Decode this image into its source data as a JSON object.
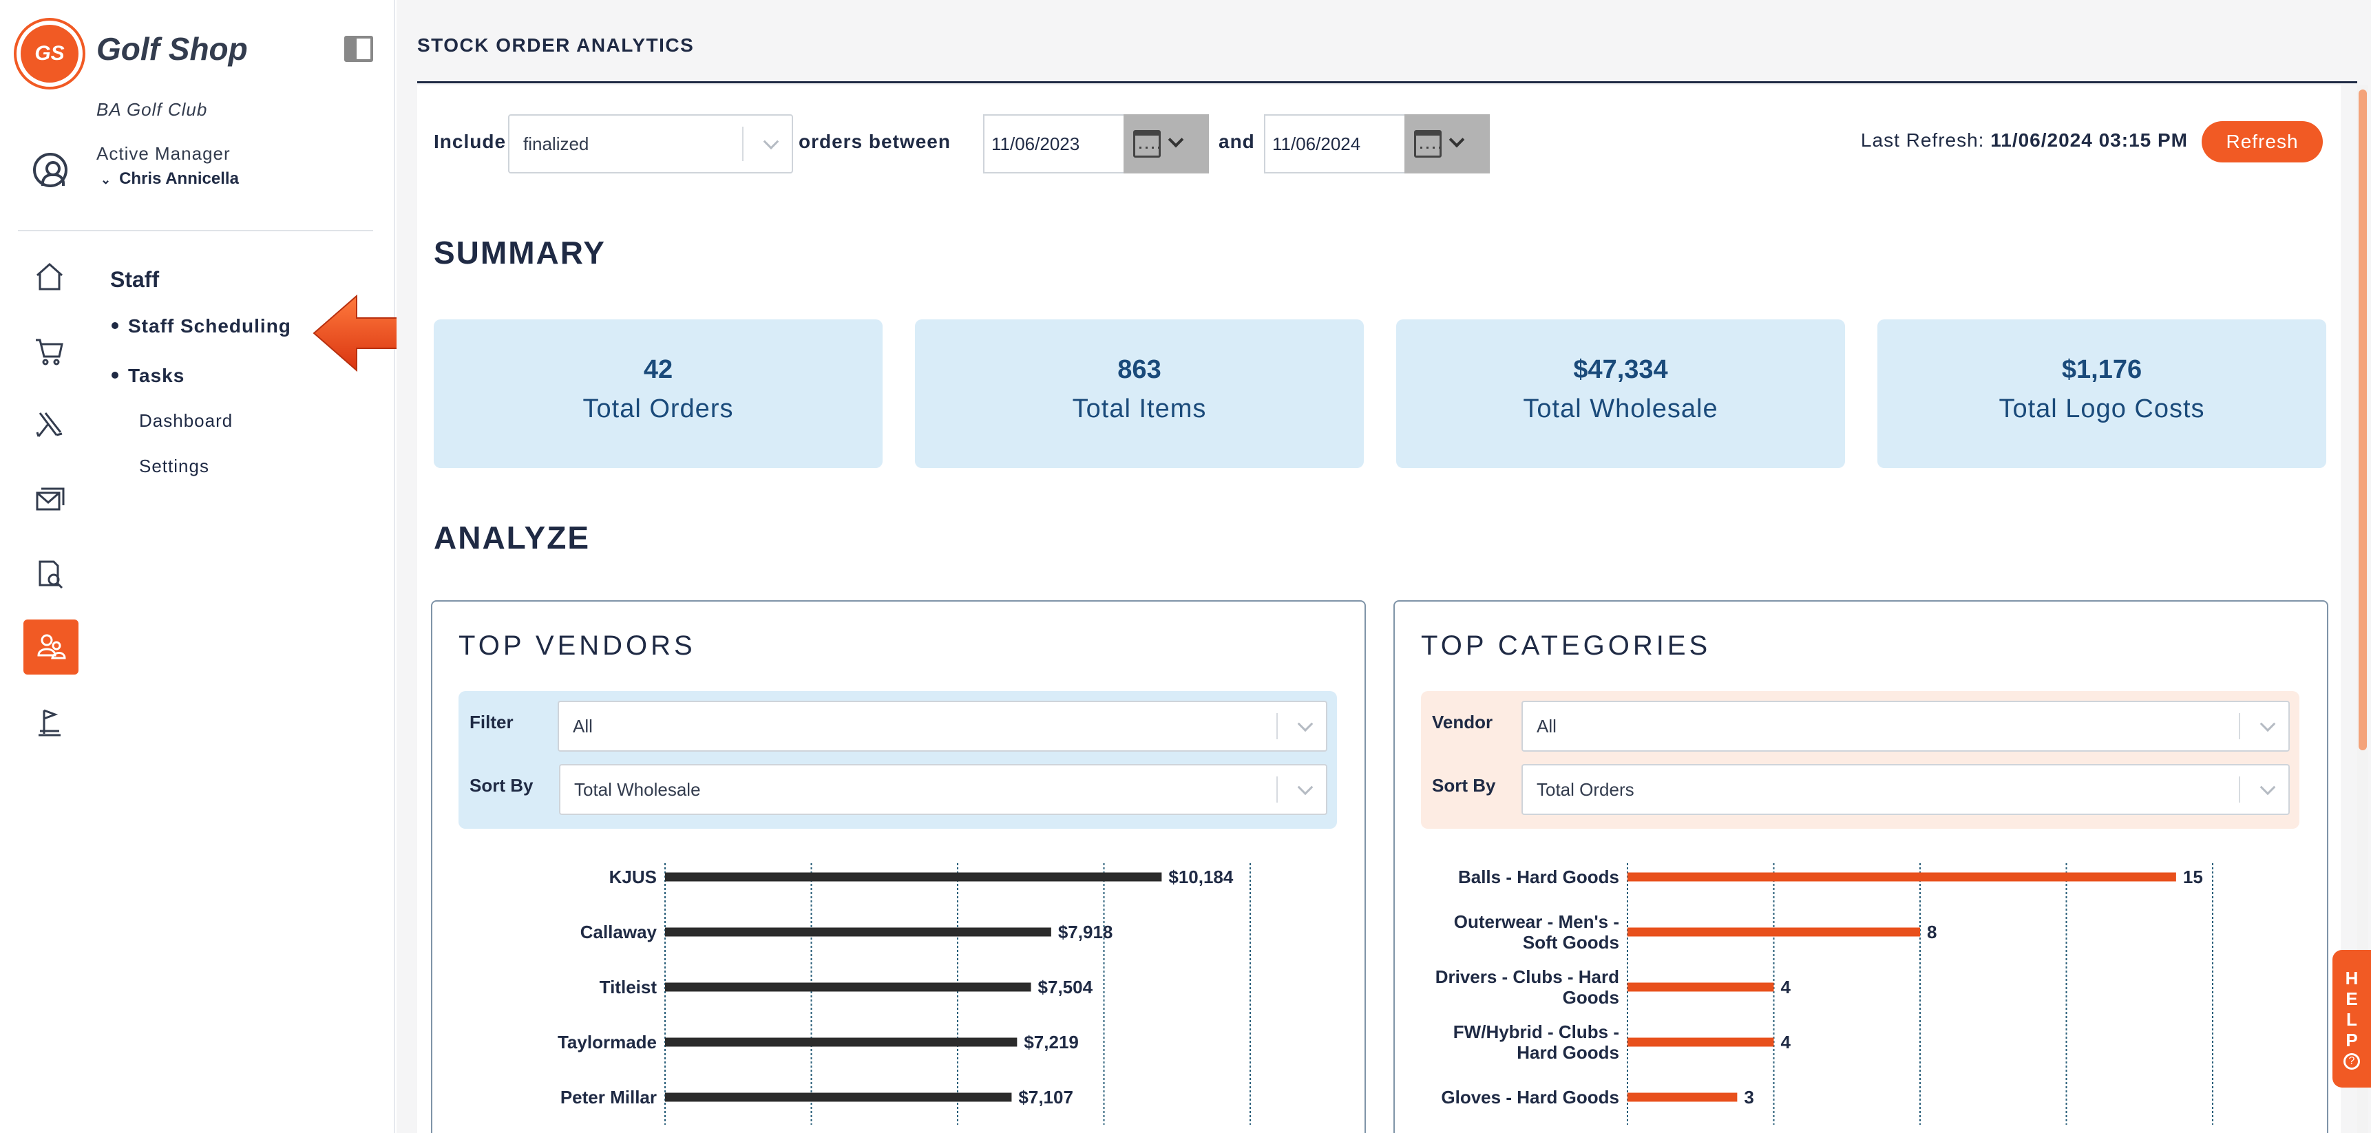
{
  "sidebar": {
    "logo_initials": "GS",
    "app_name": "Golf Shop",
    "club_name": "BA Golf Club",
    "manager_label": "Active Manager",
    "manager_name": "Chris Annicella",
    "section_title": "Staff",
    "menu": [
      {
        "label": "Staff Scheduling",
        "bullet": true
      },
      {
        "label": "Tasks",
        "bullet": true
      },
      {
        "label": "Dashboard",
        "bullet": false
      },
      {
        "label": "Settings",
        "bullet": false
      }
    ],
    "nav_icons": [
      "home-icon",
      "cart-icon",
      "golf-clubs-icon",
      "mail-icon",
      "document-search-icon",
      "staff-icon",
      "flag-icon"
    ],
    "active_icon": "staff-icon",
    "arrow_color": "#e8431a"
  },
  "header": {
    "title": "STOCK ORDER ANALYTICS"
  },
  "filters": {
    "include_label": "Include",
    "include_value": "finalized",
    "between_label": "orders between",
    "start_date": "11/06/2023",
    "and_label": "and",
    "end_date": "11/06/2024",
    "last_refresh_label": "Last Refresh:",
    "last_refresh_value": "11/06/2024 03:15 PM",
    "refresh_button": "Refresh"
  },
  "summary": {
    "title": "SUMMARY",
    "cards": [
      {
        "value": "42",
        "label": "Total Orders"
      },
      {
        "value": "863",
        "label": "Total Items"
      },
      {
        "value": "$47,334",
        "label": "Total Wholesale"
      },
      {
        "value": "$1,176",
        "label": "Total Logo Costs"
      }
    ]
  },
  "analyze": {
    "title": "ANALYZE",
    "vendors": {
      "title": "TOP VENDORS",
      "filter_label": "Filter",
      "filter_value": "All",
      "sort_label": "Sort By",
      "sort_value": "Total Wholesale"
    },
    "categories": {
      "title": "TOP CATEGORIES",
      "vendor_label": "Vendor",
      "vendor_value": "All",
      "sort_label": "Sort By",
      "sort_value": "Total Orders"
    }
  },
  "help": {
    "label": "HELP"
  },
  "colors": {
    "accent": "#f15a24",
    "card_bg": "#d9ecf8",
    "vendor_bar": "#2b2b2b",
    "category_bar": "#e8501c",
    "navy": "#1f2a44"
  },
  "chart_data": [
    {
      "type": "bar",
      "orientation": "horizontal",
      "categories": [
        "KJUS",
        "Callaway",
        "Titleist",
        "Taylormade",
        "Peter Millar"
      ],
      "values": [
        10184,
        7918,
        7504,
        7219,
        7107
      ],
      "value_labels": [
        "$10,184",
        "$7,918",
        "$7,504",
        "$7,219",
        "$7,107"
      ],
      "xlim": [
        0,
        12000
      ],
      "grid": true
    },
    {
      "type": "bar",
      "orientation": "horizontal",
      "categories": [
        [
          "Balls - Hard Goods"
        ],
        [
          "Outerwear - Men's -",
          "Soft Goods"
        ],
        [
          "Drivers - Clubs - Hard",
          "Goods"
        ],
        [
          "FW/Hybrid - Clubs -",
          "Hard Goods"
        ],
        [
          "Gloves - Hard Goods"
        ]
      ],
      "values": [
        15,
        8,
        4,
        4,
        3
      ],
      "value_labels": [
        "15",
        "8",
        "4",
        "4",
        "3"
      ],
      "xlim": [
        0,
        16
      ],
      "grid": true
    }
  ]
}
